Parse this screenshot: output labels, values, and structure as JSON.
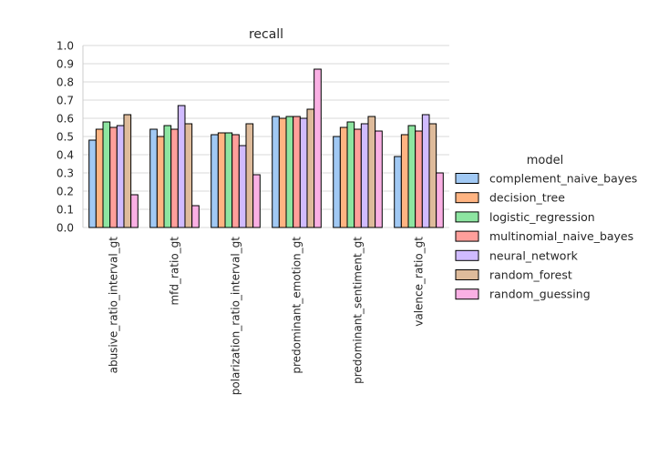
{
  "chart_data": {
    "type": "bar",
    "title": "recall",
    "xlabel": "",
    "ylabel": "",
    "ylim": [
      0,
      1.0
    ],
    "yticks": [
      0.0,
      0.1,
      0.2,
      0.3,
      0.4,
      0.5,
      0.6,
      0.7,
      0.8,
      0.9,
      1.0
    ],
    "ytick_labels": [
      "0.0",
      "0.1",
      "0.2",
      "0.3",
      "0.4",
      "0.5",
      "0.6",
      "0.7",
      "0.8",
      "0.9",
      "1.0"
    ],
    "grid": "horizontal",
    "legend_title": "model",
    "legend_position": "right",
    "categories": [
      "abusive_ratio_interval_gt",
      "mfd_ratio_gt",
      "polarization_ratio_interval_gt",
      "predominant_emotion_gt",
      "predominant_sentiment_gt",
      "valence_ratio_gt"
    ],
    "series": [
      {
        "name": "complement_naive_bayes",
        "color": "#a1c9f4",
        "values": [
          0.48,
          0.54,
          0.51,
          0.61,
          0.5,
          0.39
        ]
      },
      {
        "name": "decision_tree",
        "color": "#ffb482",
        "values": [
          0.54,
          0.5,
          0.52,
          0.6,
          0.55,
          0.51
        ]
      },
      {
        "name": "logistic_regression",
        "color": "#8de5a1",
        "values": [
          0.58,
          0.56,
          0.52,
          0.61,
          0.58,
          0.56
        ]
      },
      {
        "name": "multinomial_naive_bayes",
        "color": "#ff9f9b",
        "values": [
          0.55,
          0.54,
          0.51,
          0.61,
          0.54,
          0.53
        ]
      },
      {
        "name": "neural_network",
        "color": "#d0bbff",
        "values": [
          0.56,
          0.67,
          0.45,
          0.6,
          0.57,
          0.62
        ]
      },
      {
        "name": "random_forest",
        "color": "#debb9b",
        "values": [
          0.62,
          0.57,
          0.57,
          0.65,
          0.61,
          0.57
        ]
      },
      {
        "name": "random_guessing",
        "color": "#fab0e4",
        "values": [
          0.18,
          0.12,
          0.29,
          0.87,
          0.53,
          0.3
        ]
      }
    ]
  }
}
